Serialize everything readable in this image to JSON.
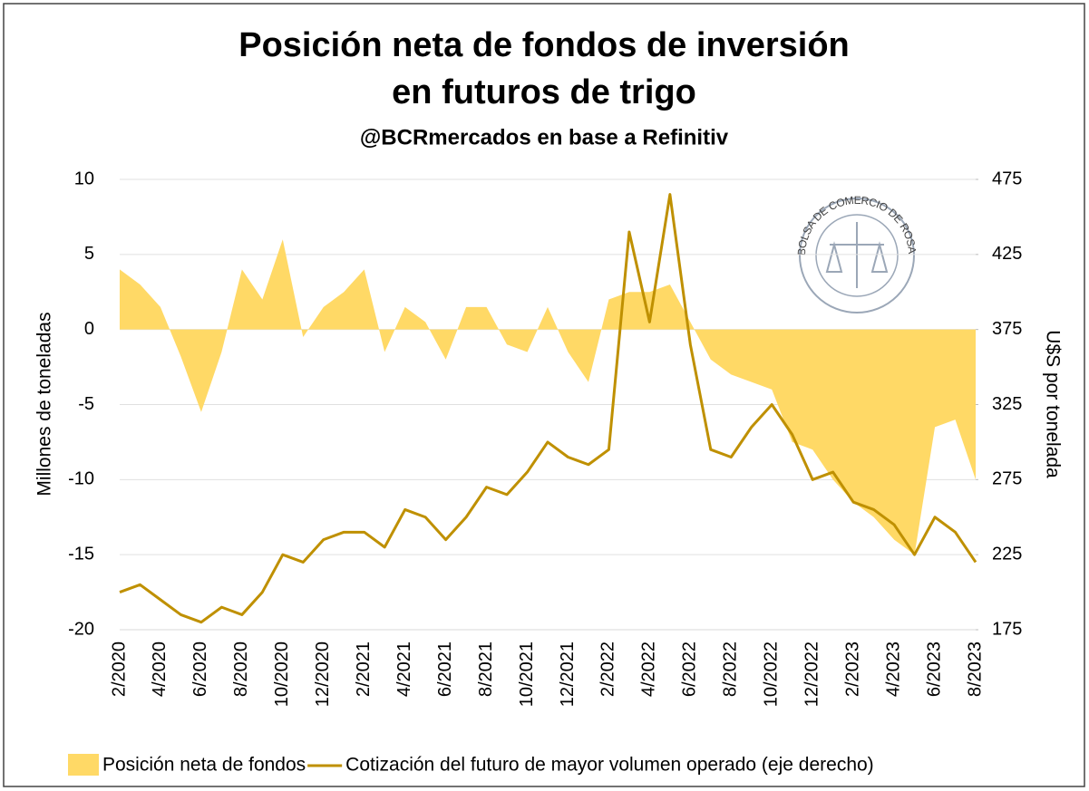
{
  "chart_data": {
    "type": "area_line",
    "title": [
      "Posición neta de fondos de inversión",
      "en futuros de trigo"
    ],
    "subtitle": "@BCRmercados en base a Refinitiv",
    "ylabel": "Millones de toneladas",
    "y2label": "U$S por tonelada",
    "logo_text": "BOLSA DE COMERCIO DE ROSARIO",
    "categories": [
      "2/2020",
      null,
      "4/2020",
      null,
      "6/2020",
      null,
      "8/2020",
      null,
      "10/2020",
      null,
      "12/2020",
      null,
      "2/2021",
      null,
      "4/2021",
      null,
      "6/2021",
      null,
      "8/2021",
      null,
      "10/2021",
      null,
      "12/2021",
      null,
      "2/2022",
      null,
      "4/2022",
      null,
      "6/2022",
      null,
      "8/2022",
      null,
      "10/2022",
      null,
      "12/2022",
      null,
      "2/2023",
      null,
      "4/2023",
      null,
      "6/2023",
      null,
      "8/2023"
    ],
    "series": [
      {
        "name": "Posición neta de fondos",
        "color": "#ffd966",
        "kind": "area",
        "values": [
          4,
          3,
          1.5,
          -1.8,
          -5.5,
          -1.5,
          4,
          2,
          6,
          -0.5,
          1.5,
          2.5,
          4,
          -1.5,
          1.5,
          0.5,
          -2,
          1.5,
          1.5,
          -1,
          -1.5,
          1.5,
          -1.5,
          -3.5,
          2,
          2.5,
          2.5,
          3,
          0.5,
          -2,
          -3,
          -3.5,
          -4,
          -7.5,
          -8,
          -10,
          -11.5,
          -12.5,
          -14,
          -15,
          -6.5,
          -6,
          -10
        ]
      },
      {
        "name": "Cotización del futuro de mayor volumen operado (eje derecho)",
        "color": "#bf9000",
        "kind": "line",
        "axis": "y2",
        "values": [
          200,
          205,
          195,
          185,
          180,
          190,
          185,
          200,
          225,
          220,
          235,
          240,
          240,
          230,
          255,
          250,
          235,
          250,
          270,
          265,
          280,
          300,
          290,
          285,
          295,
          440,
          380,
          465,
          365,
          295,
          290,
          310,
          325,
          305,
          275,
          280,
          260,
          255,
          245,
          225,
          250,
          240,
          220
        ]
      }
    ],
    "ylim": [
      -20,
      10
    ],
    "yticks": [
      -20,
      -15,
      -10,
      -5,
      0,
      5,
      10
    ],
    "y2lim": [
      175,
      475
    ],
    "y2ticks": [
      175,
      225,
      275,
      325,
      375,
      425,
      475
    ],
    "grid": true,
    "legend": "bottom"
  }
}
